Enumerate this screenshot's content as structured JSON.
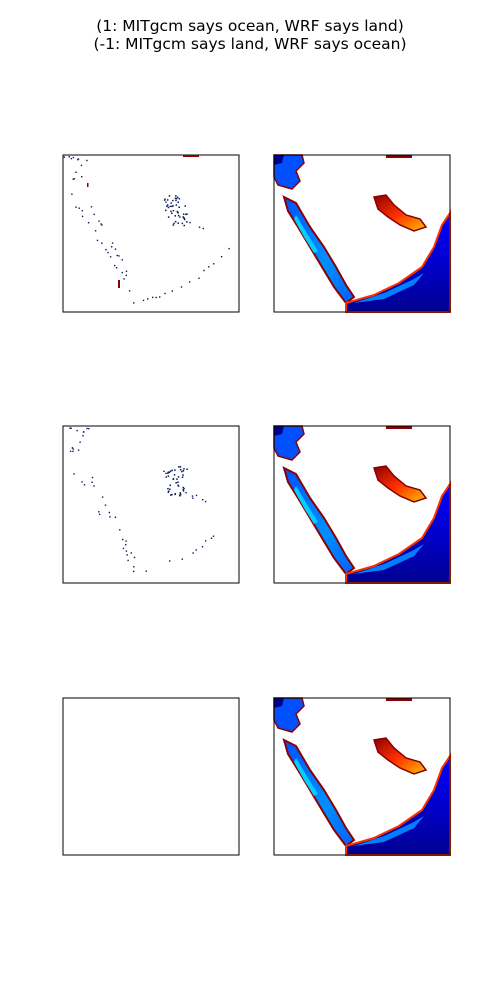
{
  "title_lines": [
    "(1: MITgcm says ocean, WRF says land)",
    "(-1: MITgcm says land, WRF says ocean)"
  ],
  "colors": {
    "mismatch": "#0b1a5a",
    "mismatch_red": "#8b0000",
    "frame": "#000000",
    "background": "#ffffff",
    "depth_colormap": "jet",
    "jet_stops": [
      "#00008f",
      "#0000ff",
      "#0070ff",
      "#00e0ff",
      "#7fff7f",
      "#ffe000",
      "#ff3000",
      "#8b0000"
    ]
  },
  "chart_data": [
    {
      "row": 1,
      "col": 1,
      "type": "heatmap",
      "content": "land-ocean mask difference",
      "visible": true
    },
    {
      "row": 1,
      "col": 2,
      "type": "heatmap",
      "content": "ocean field",
      "colormap": "jet"
    },
    {
      "row": 2,
      "col": 1,
      "type": "heatmap",
      "content": "land-ocean mask difference",
      "visible": true
    },
    {
      "row": 2,
      "col": 2,
      "type": "heatmap",
      "content": "ocean field",
      "colormap": "jet"
    },
    {
      "row": 3,
      "col": 1,
      "type": "heatmap",
      "content": "land-ocean mask difference",
      "visible": false
    },
    {
      "row": 3,
      "col": 2,
      "type": "heatmap",
      "content": "ocean field",
      "colormap": "jet"
    }
  ]
}
